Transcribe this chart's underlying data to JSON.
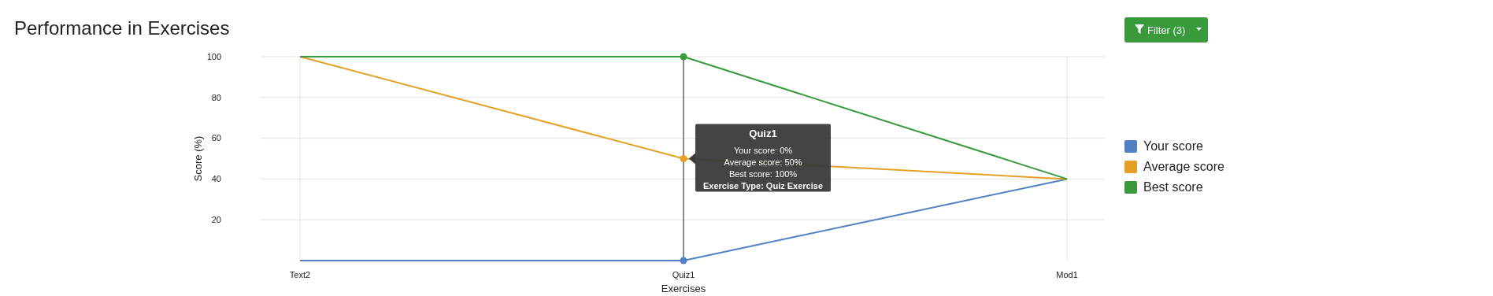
{
  "chart_data": {
    "type": "line",
    "title": "Performance in Exercises",
    "xlabel": "Exercises",
    "ylabel": "Score (%)",
    "categories": [
      "Text2",
      "Quiz1",
      "Mod1"
    ],
    "series": [
      {
        "name": "Your score",
        "color": "#4f81c4",
        "values": [
          0,
          0,
          40
        ]
      },
      {
        "name": "Average score",
        "color": "#e5a126",
        "values": [
          100,
          50,
          40
        ]
      },
      {
        "name": "Best score",
        "color": "#389a3b",
        "values": [
          100,
          100,
          40
        ]
      }
    ],
    "ylim": [
      0,
      100
    ],
    "yticks": [
      20,
      40,
      60,
      80,
      100
    ],
    "grid": true,
    "ref_lines": [
      {
        "axis": "x",
        "value": "Quiz1",
        "color": "#666666"
      }
    ],
    "legend": "right",
    "annotations": [
      {
        "text": "Quiz1\nYour score: 0%\nAverage score: 50%\nBest score: 100%\nExercise Type: Quiz Exercise",
        "x": "Quiz1"
      },
      "Filter (3)"
    ]
  }
}
